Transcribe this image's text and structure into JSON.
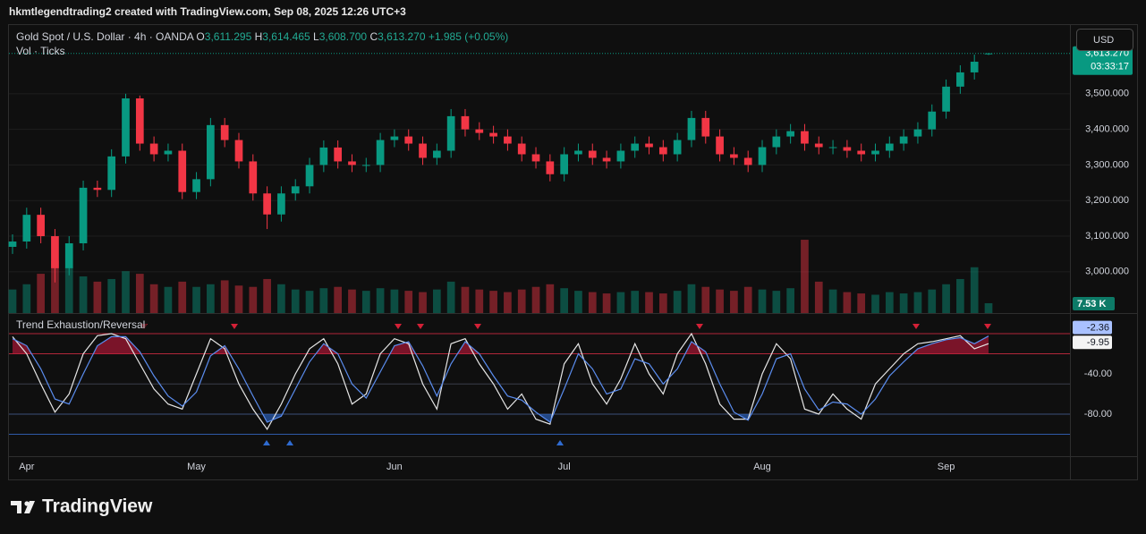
{
  "header": {
    "caption": "hkmtlegendtrading2 created with TradingView.com, Sep 08, 2025 12:26 UTC+3",
    "logo": "TradingView"
  },
  "chart_data": [
    {
      "type": "candlestick",
      "title": "Gold Spot / U.S. Dollar · 4h · OANDA",
      "last_bar_labels": [
        {
          "key": "O",
          "value": "3,611.295"
        },
        {
          "key": "H",
          "value": "3,614.465"
        },
        {
          "key": "L",
          "value": "3,608.700"
        },
        {
          "key": "C",
          "value": "3,613.270"
        }
      ],
      "change_label": "+1.985 (+0.05%)",
      "currency": "USD",
      "last_price_label": "3,613.270",
      "countdown": "03:33:17",
      "categories": [
        null,
        "Apr",
        null,
        null,
        null,
        null,
        null,
        null,
        null,
        null,
        null,
        null,
        null,
        "May",
        null,
        null,
        null,
        null,
        null,
        null,
        null,
        null,
        null,
        null,
        null,
        null,
        null,
        "Jun",
        null,
        null,
        null,
        null,
        null,
        null,
        null,
        null,
        null,
        null,
        null,
        "Jul",
        null,
        null,
        null,
        null,
        null,
        null,
        null,
        null,
        null,
        null,
        null,
        null,
        null,
        "Aug",
        null,
        null,
        null,
        null,
        null,
        null,
        null,
        null,
        null,
        null,
        null,
        null,
        "Sep",
        null,
        null,
        null
      ],
      "open": [
        3070,
        3085,
        3160,
        3100,
        3010,
        3080,
        3236,
        3230,
        3324,
        3487,
        3360,
        3330,
        3340,
        3224,
        3260,
        3412,
        3370,
        3310,
        3220,
        3161,
        3220,
        3240,
        3300,
        3349,
        3310,
        3300,
        3300,
        3370,
        3380,
        3360,
        3320,
        3340,
        3437,
        3400,
        3390,
        3380,
        3360,
        3330,
        3310,
        3274,
        3330,
        3340,
        3320,
        3310,
        3340,
        3360,
        3350,
        3330,
        3370,
        3432,
        3380,
        3330,
        3320,
        3300,
        3350,
        3380,
        3395,
        3360,
        3350,
        3350,
        3340,
        3330,
        3340,
        3360,
        3380,
        3400,
        3450,
        3520,
        3560,
        3611.295
      ],
      "high": [
        3105,
        3180,
        3180,
        3120,
        3100,
        3256,
        3256,
        3344,
        3500,
        3495,
        3380,
        3360,
        3360,
        3280,
        3432,
        3432,
        3390,
        3330,
        3240,
        3240,
        3260,
        3320,
        3369,
        3369,
        3330,
        3320,
        3390,
        3400,
        3400,
        3380,
        3360,
        3457,
        3457,
        3420,
        3410,
        3400,
        3380,
        3350,
        3330,
        3350,
        3360,
        3360,
        3340,
        3360,
        3380,
        3380,
        3370,
        3390,
        3452,
        3452,
        3400,
        3350,
        3340,
        3370,
        3400,
        3415,
        3415,
        3380,
        3370,
        3370,
        3360,
        3360,
        3380,
        3400,
        3420,
        3470,
        3540,
        3580,
        3610,
        3614.465
      ],
      "low": [
        3050,
        3065,
        3080,
        2970,
        2990,
        3060,
        3210,
        3210,
        3304,
        3340,
        3310,
        3310,
        3204,
        3204,
        3240,
        3350,
        3290,
        3200,
        3120,
        3141,
        3200,
        3220,
        3280,
        3290,
        3280,
        3280,
        3280,
        3350,
        3340,
        3300,
        3300,
        3320,
        3380,
        3370,
        3360,
        3340,
        3310,
        3290,
        3254,
        3254,
        3310,
        3300,
        3290,
        3290,
        3320,
        3330,
        3310,
        3310,
        3350,
        3360,
        3310,
        3300,
        3280,
        3280,
        3330,
        3360,
        3340,
        3330,
        3330,
        3320,
        3310,
        3310,
        3320,
        3340,
        3360,
        3380,
        3430,
        3500,
        3540,
        3608.7
      ],
      "close": [
        3085,
        3160,
        3100,
        3010,
        3080,
        3236,
        3230,
        3324,
        3487,
        3360,
        3330,
        3340,
        3224,
        3260,
        3412,
        3370,
        3310,
        3220,
        3161,
        3220,
        3240,
        3300,
        3349,
        3310,
        3300,
        3300,
        3370,
        3380,
        3360,
        3320,
        3340,
        3437,
        3400,
        3390,
        3380,
        3360,
        3330,
        3310,
        3274,
        3330,
        3340,
        3320,
        3310,
        3340,
        3360,
        3350,
        3330,
        3370,
        3432,
        3380,
        3330,
        3320,
        3300,
        3350,
        3380,
        3395,
        3360,
        3350,
        3350,
        3340,
        3330,
        3340,
        3360,
        3380,
        3400,
        3450,
        3520,
        3560,
        3590,
        3613.27
      ],
      "up_color": "#089981",
      "down_color": "#f23645",
      "ylim": [
        2884,
        3693
      ],
      "yticks": [
        {
          "value": 3000,
          "label": "3,000.000"
        },
        {
          "value": 3100,
          "label": "3,100.000"
        },
        {
          "value": 3200,
          "label": "3,200.000"
        },
        {
          "value": 3300,
          "label": "3,300.000"
        },
        {
          "value": 3400,
          "label": "3,400.000"
        },
        {
          "value": 3500,
          "label": "3,500.000"
        }
      ],
      "grid": true
    },
    {
      "type": "bar",
      "title": "Vol · Ticks",
      "values": [
        18,
        22,
        30,
        40,
        35,
        28,
        24,
        26,
        32,
        30,
        22,
        20,
        24,
        20,
        22,
        25,
        21,
        20,
        26,
        22,
        18,
        17,
        19,
        20,
        18,
        17,
        19,
        18,
        17,
        16,
        18,
        24,
        20,
        18,
        17,
        16,
        18,
        20,
        22,
        19,
        17,
        16,
        15,
        16,
        17,
        16,
        15,
        17,
        22,
        20,
        18,
        17,
        20,
        18,
        17,
        19,
        56,
        24,
        18,
        16,
        15,
        14,
        16,
        15,
        16,
        18,
        22,
        26,
        35,
        7.53
      ],
      "last_value_label": "7.53 K",
      "ylim": [
        0,
        220
      ]
    },
    {
      "type": "line",
      "title": "Trend Exhaustion/Reversal",
      "series": [
        {
          "color": "#e6e6e6",
          "values": [
            -3,
            -20,
            -50,
            -78,
            -60,
            -20,
            -2,
            0,
            -5,
            -30,
            -55,
            -70,
            -75,
            -40,
            -5,
            -15,
            -50,
            -75,
            -95,
            -70,
            -40,
            -15,
            -5,
            -30,
            -70,
            -60,
            -20,
            -5,
            -10,
            -50,
            -75,
            -10,
            -5,
            -30,
            -50,
            -75,
            -60,
            -85,
            -90,
            -30,
            -10,
            -50,
            -70,
            -45,
            -10,
            -40,
            -60,
            -20,
            0,
            -30,
            -70,
            -85,
            -85,
            -40,
            -10,
            -25,
            -75,
            -80,
            -60,
            -75,
            -85,
            -50,
            -35,
            -20,
            -10,
            -8,
            -5,
            -2,
            -15,
            -9.95
          ]
        },
        {
          "color": "#5b8def",
          "values": [
            -5,
            -12,
            -35,
            -65,
            -70,
            -40,
            -12,
            -3,
            -3,
            -18,
            -42,
            -62,
            -72,
            -58,
            -22,
            -12,
            -35,
            -62,
            -88,
            -82,
            -55,
            -28,
            -10,
            -20,
            -50,
            -64,
            -38,
            -12,
            -8,
            -32,
            -62,
            -30,
            -8,
            -20,
            -42,
            -62,
            -66,
            -78,
            -88,
            -55,
            -20,
            -35,
            -60,
            -55,
            -25,
            -30,
            -50,
            -35,
            -8,
            -18,
            -50,
            -78,
            -86,
            -60,
            -25,
            -20,
            -55,
            -76,
            -68,
            -70,
            -80,
            -65,
            -42,
            -28,
            -15,
            -10,
            -6,
            -4,
            -10,
            -2.36
          ]
        }
      ],
      "ylim": [
        -121.8,
        18.7
      ],
      "yticks": [
        {
          "value": -40,
          "label": "-40.00"
        },
        {
          "value": -80,
          "label": "-80.00"
        }
      ],
      "grid": false,
      "levels": [
        {
          "value": 0,
          "color": "#b2263a"
        },
        {
          "value": -20,
          "color": "#b2263a"
        },
        {
          "value": -50,
          "color": "#3a3e4a"
        },
        {
          "value": -80,
          "color": "#3b4f78"
        },
        {
          "value": -100,
          "color": "#2f5aa8"
        }
      ],
      "overbought": -20,
      "overbought_color": "#c2183a",
      "oversold": -80,
      "oversold_color": "#2f6bd0"
    }
  ]
}
